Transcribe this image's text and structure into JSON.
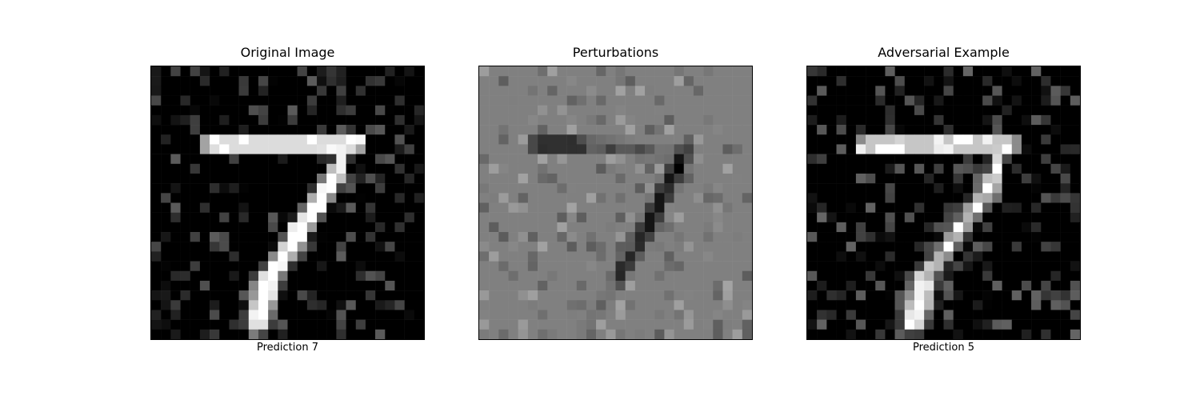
{
  "panels": [
    {
      "title": "Original Image",
      "caption": "Prediction 7",
      "colormap": "gray",
      "background_level": 0,
      "strokes": [
        {
          "from": [
            6,
            8
          ],
          "to": [
            21,
            8
          ],
          "level": 1.0,
          "width": 1.3
        },
        {
          "from": [
            20,
            8
          ],
          "to": [
            19,
            11
          ],
          "level": 0.95,
          "width": 1.1
        },
        {
          "from": [
            19,
            11
          ],
          "to": [
            12,
            22
          ],
          "level": 1.0,
          "width": 1.5
        },
        {
          "from": [
            12,
            22
          ],
          "to": [
            11,
            26
          ],
          "level": 1.0,
          "width": 1.9
        }
      ],
      "noise_level": 0.18,
      "noise_seed": 11
    },
    {
      "title": "Perturbations",
      "caption": "",
      "colormap": "gray",
      "background_level": 0.5,
      "strokes": [
        {
          "from": [
            6,
            8
          ],
          "to": [
            11,
            8
          ],
          "level": 0.12,
          "width": 1.2
        },
        {
          "from": [
            11,
            8
          ],
          "to": [
            21,
            9
          ],
          "level": 0.35,
          "width": 1.0
        },
        {
          "from": [
            21,
            9
          ],
          "to": [
            17,
            17
          ],
          "level": 0.08,
          "width": 1.2
        },
        {
          "from": [
            17,
            17
          ],
          "to": [
            14,
            22
          ],
          "level": 0.15,
          "width": 1.1
        },
        {
          "from": [
            14,
            22
          ],
          "to": [
            11,
            27
          ],
          "level": 0.45,
          "width": 1.0
        }
      ],
      "noise_level": 0.14,
      "noise_seed": 29
    },
    {
      "title": "Adversarial Example",
      "caption": "Prediction 5",
      "colormap": "gray",
      "background_level": 0,
      "strokes": [
        {
          "from": [
            6,
            8
          ],
          "to": [
            21,
            8
          ],
          "level": 0.95,
          "width": 1.2
        },
        {
          "from": [
            20,
            8
          ],
          "to": [
            19,
            12
          ],
          "level": 0.85,
          "width": 1.1
        },
        {
          "from": [
            19,
            12
          ],
          "to": [
            12,
            22
          ],
          "level": 0.7,
          "width": 1.4
        },
        {
          "from": [
            12,
            22
          ],
          "to": [
            11,
            26
          ],
          "level": 0.95,
          "width": 1.9
        }
      ],
      "noise_level": 0.2,
      "noise_seed": 47
    }
  ]
}
